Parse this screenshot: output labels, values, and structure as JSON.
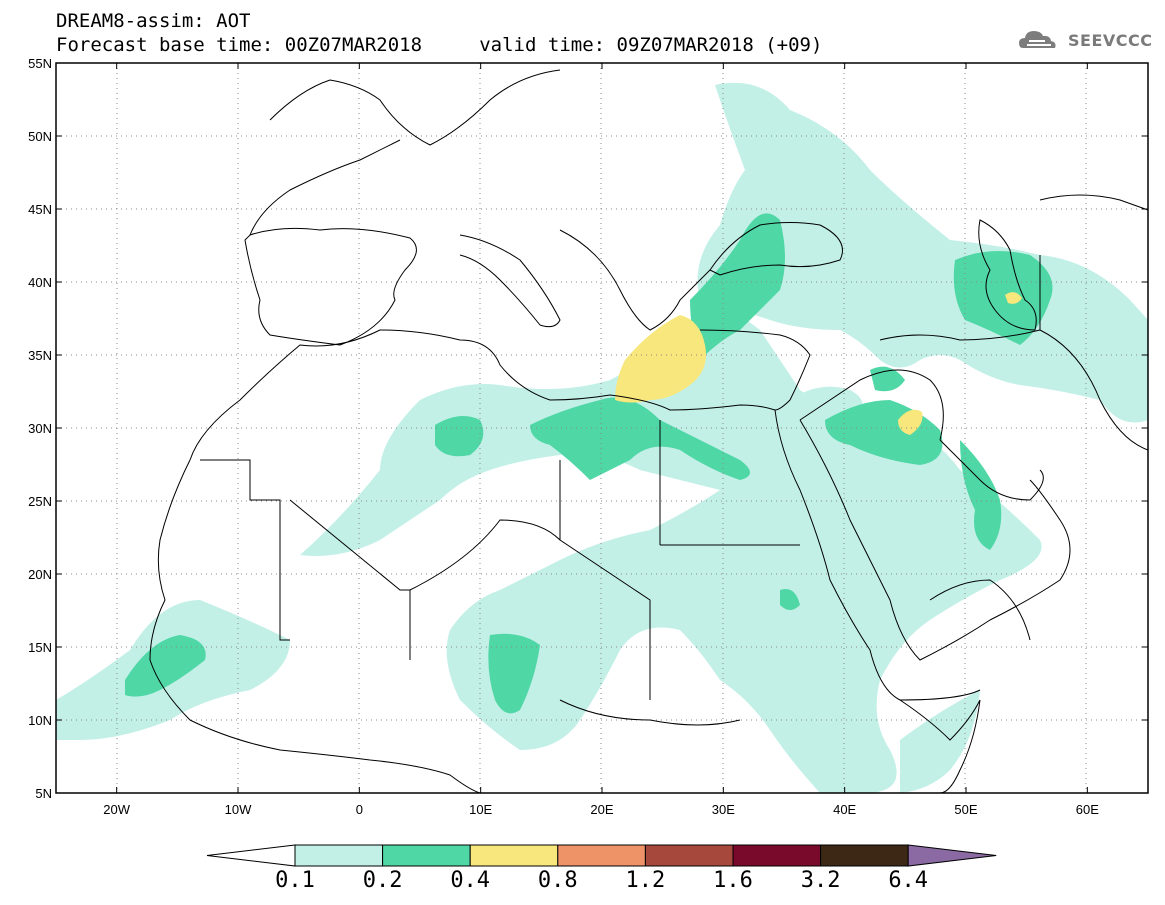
{
  "header": {
    "line1": "DREAM8-assim: AOT",
    "line2": "Forecast base time: 00Z07MAR2018     valid time: 09Z07MAR2018 (+09)"
  },
  "logo": {
    "text": "SEEVCCC",
    "icon": "cloud-icon"
  },
  "map": {
    "lat_labels": [
      "55N",
      "50N",
      "45N",
      "40N",
      "35N",
      "30N",
      "25N",
      "20N",
      "15N",
      "10N",
      "5N"
    ],
    "lon_labels": [
      "20W",
      "10W",
      "0",
      "10E",
      "20E",
      "30E",
      "40E",
      "50E",
      "60E"
    ],
    "lat_range": [
      5,
      55
    ],
    "lon_range": [
      -25,
      65
    ],
    "land_color": "#ffffff",
    "border_color": "#000000",
    "grid": "dotted"
  },
  "colorbar": {
    "levels": [
      "0.1",
      "0.2",
      "0.4",
      "0.8",
      "1.2",
      "1.6",
      "3.2",
      "6.4"
    ],
    "colors": [
      "#ffffff",
      "#c2f0e7",
      "#50d7a6",
      "#f7e77c",
      "#ee9268",
      "#a6493c",
      "#7a0a2b",
      "#3d2816",
      "#8b6aa4"
    ]
  }
}
